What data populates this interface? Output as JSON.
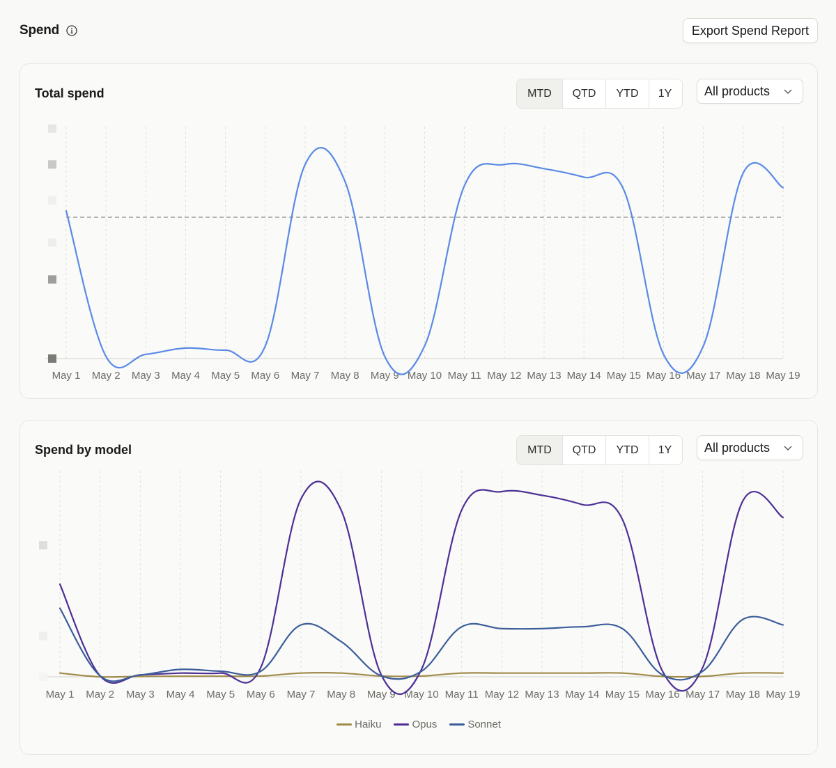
{
  "header": {
    "title": "Spend",
    "export_label": "Export Spend Report"
  },
  "cards": [
    {
      "title": "Total spend",
      "ranges": [
        "MTD",
        "QTD",
        "YTD",
        "1Y"
      ],
      "active_range": "MTD",
      "product_filter": "All products"
    },
    {
      "title": "Spend by model",
      "ranges": [
        "MTD",
        "QTD",
        "YTD",
        "1Y"
      ],
      "active_range": "MTD",
      "product_filter": "All products"
    }
  ],
  "chart_data": [
    {
      "type": "line",
      "title": "Total spend",
      "categories": [
        "May 1",
        "May 2",
        "May 3",
        "May 4",
        "May 5",
        "May 6",
        "May 7",
        "May 8",
        "May 9",
        "May 10",
        "May 11",
        "May 12",
        "May 13",
        "May 14",
        "May 15",
        "May 16",
        "May 17",
        "May 18",
        "May 19"
      ],
      "series": [
        {
          "color": "#5a8ae6",
          "values": [
            0.7,
            0.01,
            0.02,
            0.05,
            0.04,
            0.06,
            0.92,
            0.84,
            0.01,
            0.06,
            0.82,
            0.92,
            0.9,
            0.86,
            0.8,
            0.02,
            0.06,
            0.88,
            0.81
          ]
        }
      ],
      "reference_line": 0.67,
      "ylim": [
        0,
        1
      ],
      "y_tick_labels_obscured": true,
      "grid": "vertical-dashed"
    },
    {
      "type": "line",
      "title": "Spend by model",
      "categories": [
        "May 1",
        "May 2",
        "May 3",
        "May 4",
        "May 5",
        "May 6",
        "May 7",
        "May 8",
        "May 9",
        "May 10",
        "May 11",
        "May 12",
        "May 13",
        "May 14",
        "May 15",
        "May 16",
        "May 17",
        "May 18",
        "May 19"
      ],
      "series": [
        {
          "name": "Haiku",
          "color": "#a08a4a",
          "values": [
            0.02,
            0.0,
            0.002,
            0.003,
            0.003,
            0.004,
            0.02,
            0.02,
            0.004,
            0.004,
            0.02,
            0.02,
            0.02,
            0.02,
            0.02,
            0.002,
            0.002,
            0.02,
            0.02
          ]
        },
        {
          "name": "Opus",
          "color": "#4d2f96",
          "values": [
            0.5,
            0.005,
            0.01,
            0.02,
            0.02,
            0.05,
            0.96,
            0.9,
            0.01,
            0.04,
            0.9,
            1.0,
            0.98,
            0.93,
            0.85,
            0.03,
            0.05,
            0.95,
            0.86
          ]
        },
        {
          "name": "Sonnet",
          "color": "#3b5d9a",
          "values": [
            0.37,
            0.005,
            0.01,
            0.04,
            0.03,
            0.03,
            0.28,
            0.19,
            0.005,
            0.03,
            0.27,
            0.26,
            0.26,
            0.27,
            0.26,
            0.01,
            0.03,
            0.31,
            0.28
          ]
        }
      ],
      "ylim": [
        0,
        1
      ],
      "y_tick_labels_obscured": true,
      "legend": "bottom-center",
      "grid": "vertical-dashed"
    }
  ]
}
